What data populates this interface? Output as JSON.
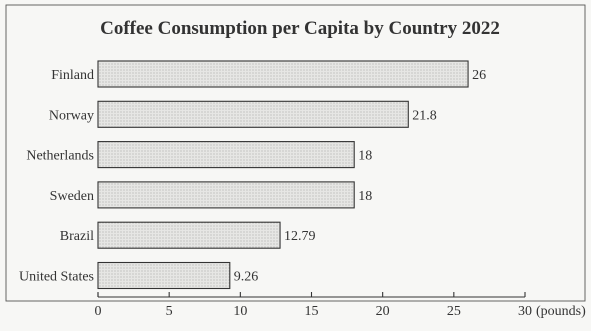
{
  "chart_data": {
    "type": "bar",
    "orientation": "horizontal",
    "title": "Coffee Consumption per Capita by Country 2022",
    "categories": [
      "Finland",
      "Norway",
      "Netherlands",
      "Sweden",
      "Brazil",
      "United States"
    ],
    "values": [
      26,
      21.8,
      18,
      18,
      12.79,
      9.26
    ],
    "value_labels": [
      "26",
      "21.8",
      "18",
      "18",
      "12.79",
      "9.26"
    ],
    "xlim": [
      0,
      30
    ],
    "xticks": [
      0,
      5,
      10,
      15,
      20,
      25,
      30
    ],
    "xtick_labels": [
      "0",
      "5",
      "10",
      "15",
      "20",
      "25",
      "30"
    ],
    "xunit": "(pounds)",
    "grid": false,
    "legend": "none"
  }
}
